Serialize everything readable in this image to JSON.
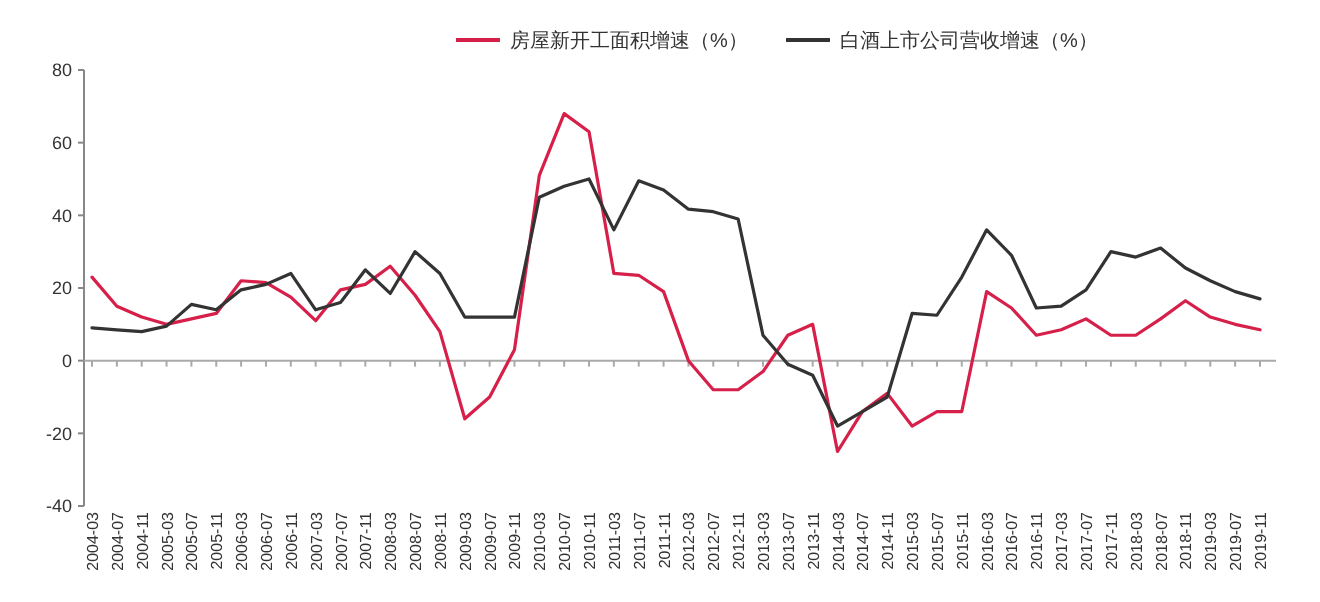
{
  "chart_data": {
    "type": "line",
    "categories": [
      "2004-03",
      "2004-07",
      "2004-11",
      "2005-03",
      "2005-07",
      "2005-11",
      "2006-03",
      "2006-07",
      "2006-11",
      "2007-03",
      "2007-07",
      "2007-11",
      "2008-03",
      "2008-07",
      "2008-11",
      "2009-03",
      "2009-07",
      "2009-11",
      "2010-03",
      "2010-07",
      "2010-11",
      "2011-03",
      "2011-07",
      "2011-11",
      "2012-03",
      "2012-07",
      "2012-11",
      "2013-03",
      "2013-07",
      "2013-11",
      "2014-03",
      "2014-07",
      "2014-11",
      "2015-03",
      "2015-07",
      "2015-11",
      "2016-03",
      "2016-07",
      "2016-11",
      "2017-03",
      "2017-07",
      "2017-11",
      "2018-03",
      "2018-07",
      "2018-11",
      "2019-03",
      "2019-07",
      "2019-11"
    ],
    "series": [
      {
        "name": "房屋新开工面积增速（%）",
        "color": "#d6204a",
        "values": [
          23,
          15,
          12,
          10,
          11.5,
          13,
          22,
          21.5,
          17.5,
          11,
          19.5,
          21,
          26,
          18,
          8,
          -16,
          -10,
          3,
          51,
          68,
          63,
          24,
          23.5,
          19,
          0,
          -8,
          -8,
          -3,
          7,
          10,
          -25,
          -14,
          -9,
          -18,
          -14,
          -14,
          19,
          14.5,
          7,
          8.5,
          11.5,
          7,
          7,
          11.5,
          16.5,
          12,
          10,
          8.5
        ]
      },
      {
        "name": "白酒上市公司营收增速（%）",
        "color": "#333333",
        "values": [
          9,
          8.5,
          8,
          9.5,
          15.5,
          14,
          19.5,
          21,
          24,
          14,
          16,
          25,
          18.5,
          30,
          24,
          12,
          12,
          12,
          45,
          48,
          50,
          36,
          49.5,
          47,
          41.7,
          41,
          39,
          7,
          -1,
          -4,
          -18,
          -14,
          -10,
          13,
          12.5,
          23,
          36,
          29,
          14.5,
          15,
          19.5,
          30,
          28.5,
          31,
          25.5,
          22,
          19,
          17
        ]
      }
    ],
    "ylim": [
      -40,
      80
    ],
    "yticks": [
      -40,
      -20,
      0,
      20,
      40,
      60,
      80
    ],
    "legend": "top",
    "line_style": "solid",
    "marker": "none"
  }
}
